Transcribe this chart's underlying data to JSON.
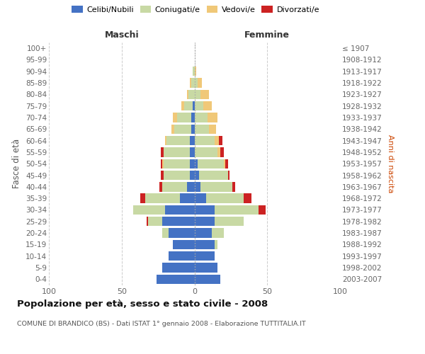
{
  "age_groups": [
    "0-4",
    "5-9",
    "10-14",
    "15-19",
    "20-24",
    "25-29",
    "30-34",
    "35-39",
    "40-44",
    "45-49",
    "50-54",
    "55-59",
    "60-64",
    "65-69",
    "70-74",
    "75-79",
    "80-84",
    "85-89",
    "90-94",
    "95-99",
    "100+"
  ],
  "birth_years": [
    "2003-2007",
    "1998-2002",
    "1993-1997",
    "1988-1992",
    "1983-1987",
    "1978-1982",
    "1973-1977",
    "1968-1972",
    "1963-1967",
    "1958-1962",
    "1953-1957",
    "1948-1952",
    "1943-1947",
    "1938-1942",
    "1933-1937",
    "1928-1932",
    "1923-1927",
    "1918-1922",
    "1913-1917",
    "1908-1912",
    "≤ 1907"
  ],
  "maschi_celibi": [
    26,
    22,
    18,
    15,
    18,
    22,
    20,
    10,
    5,
    3,
    3,
    3,
    3,
    2,
    2,
    1,
    0,
    0,
    0,
    0,
    0
  ],
  "maschi_coniugati": [
    0,
    0,
    0,
    0,
    4,
    10,
    22,
    24,
    17,
    18,
    18,
    18,
    16,
    12,
    10,
    6,
    4,
    2,
    1,
    0,
    0
  ],
  "maschi_vedovi": [
    0,
    0,
    0,
    0,
    0,
    0,
    0,
    0,
    0,
    0,
    1,
    0,
    1,
    2,
    3,
    2,
    1,
    1,
    0,
    0,
    0
  ],
  "maschi_divorziati": [
    0,
    0,
    0,
    0,
    0,
    1,
    0,
    3,
    2,
    2,
    1,
    2,
    0,
    0,
    0,
    0,
    0,
    0,
    0,
    0,
    0
  ],
  "femmine_celibi": [
    18,
    16,
    14,
    14,
    12,
    14,
    14,
    8,
    4,
    3,
    2,
    0,
    0,
    0,
    0,
    0,
    0,
    0,
    0,
    0,
    0
  ],
  "femmine_coniugati": [
    0,
    0,
    0,
    2,
    8,
    20,
    30,
    26,
    22,
    20,
    18,
    16,
    14,
    10,
    9,
    6,
    4,
    2,
    0,
    0,
    0
  ],
  "femmine_vedovi": [
    0,
    0,
    0,
    0,
    0,
    0,
    0,
    0,
    0,
    0,
    1,
    2,
    3,
    5,
    7,
    6,
    6,
    3,
    1,
    0,
    0
  ],
  "femmine_divorziati": [
    0,
    0,
    0,
    0,
    0,
    0,
    5,
    5,
    2,
    1,
    2,
    2,
    2,
    0,
    0,
    0,
    0,
    0,
    0,
    0,
    0
  ],
  "color_celibi": "#4472c4",
  "color_coniugati": "#c8d9a4",
  "color_vedovi": "#f0c878",
  "color_divorziati": "#cc2222",
  "xlim": 100,
  "title": "Popolazione per età, sesso e stato civile - 2008",
  "subtitle": "COMUNE DI BRANDICO (BS) - Dati ISTAT 1° gennaio 2008 - Elaborazione TUTTITALIA.IT",
  "ylabel_left": "Fasce di età",
  "ylabel_right": "Anni di nascita",
  "xlabel_maschi": "Maschi",
  "xlabel_femmine": "Femmine",
  "background_color": "#ffffff",
  "grid_color": "#cccccc",
  "legend_labels": [
    "Celibi/Nubili",
    "Coniugati/e",
    "Vedovi/e",
    "Divorzati/e"
  ]
}
